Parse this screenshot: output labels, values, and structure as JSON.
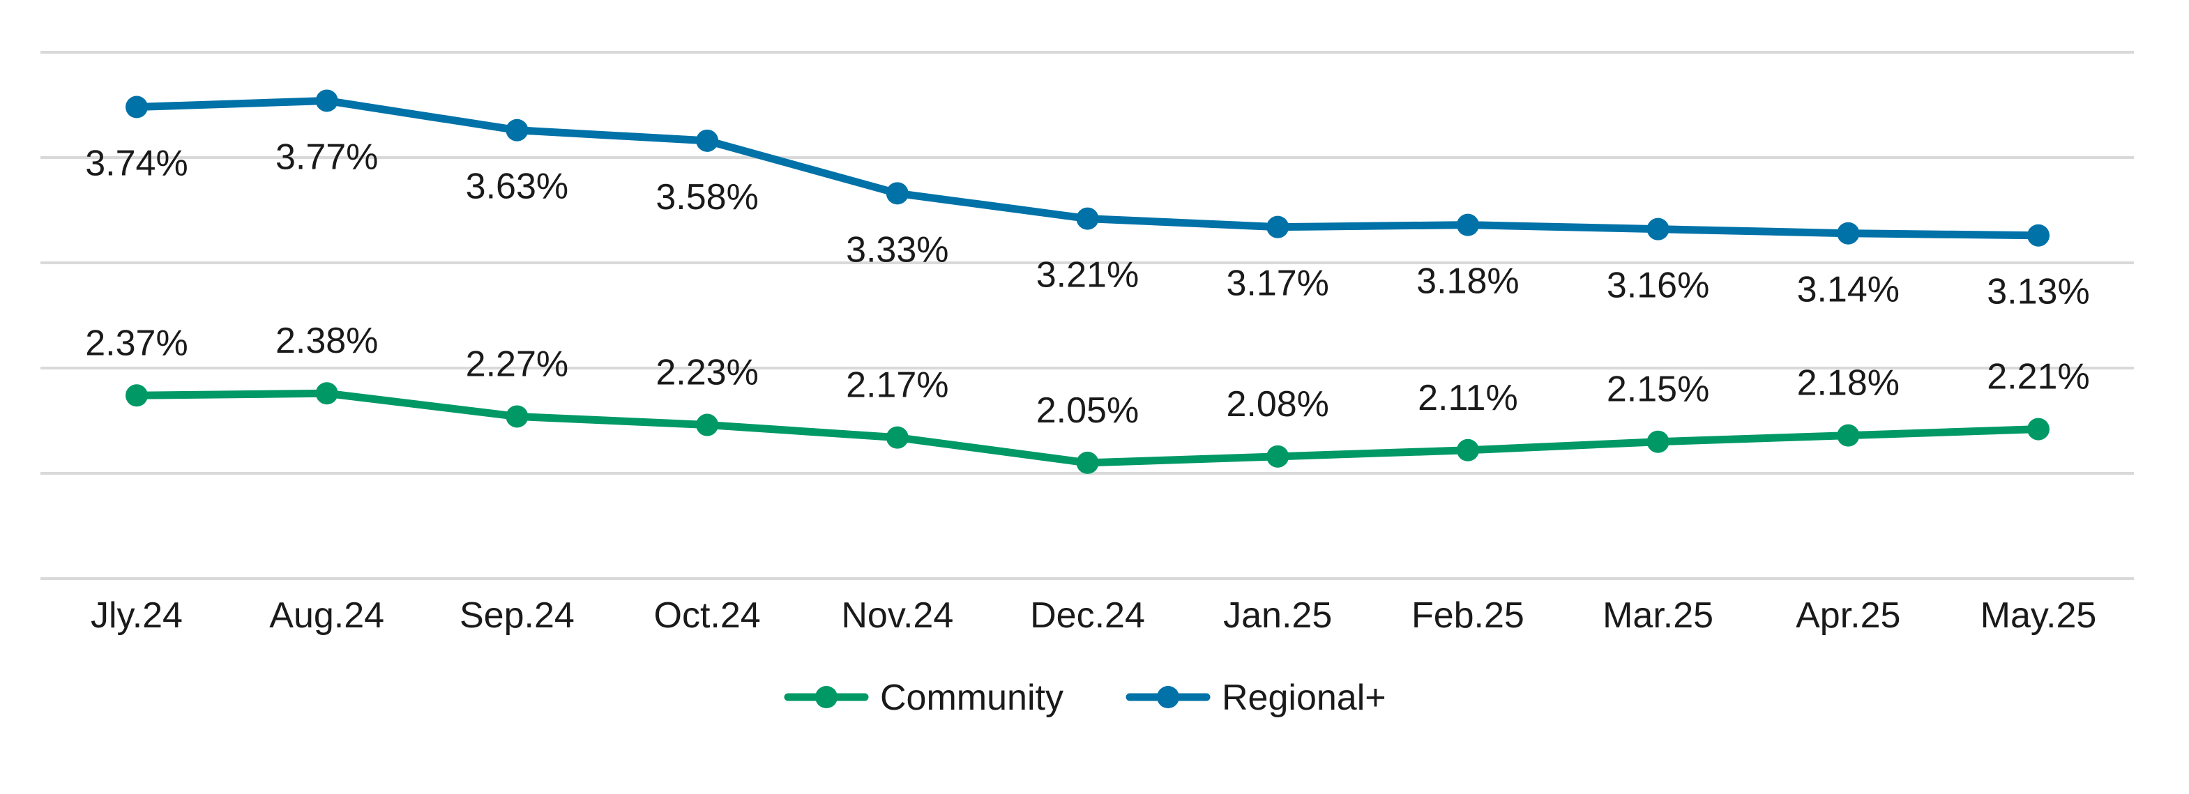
{
  "chart_data": {
    "type": "line",
    "categories": [
      "Jly.24",
      "Aug.24",
      "Sep.24",
      "Oct.24",
      "Nov.24",
      "Dec.24",
      "Jan.25",
      "Feb.25",
      "Mar.25",
      "Apr.25",
      "May.25"
    ],
    "series": [
      {
        "name": "Community",
        "color": "#009966",
        "values": [
          2.37,
          2.38,
          2.27,
          2.23,
          2.17,
          2.05,
          2.08,
          2.11,
          2.15,
          2.18,
          2.21
        ],
        "labels": [
          "2.37%",
          "2.38%",
          "2.27%",
          "2.23%",
          "2.17%",
          "2.05%",
          "2.08%",
          "2.11%",
          "2.15%",
          "2.18%",
          "2.21%"
        ]
      },
      {
        "name": "Regional+",
        "color": "#0072a8",
        "values": [
          3.74,
          3.77,
          3.63,
          3.58,
          3.33,
          3.21,
          3.17,
          3.18,
          3.16,
          3.14,
          3.13
        ],
        "labels": [
          "3.74%",
          "3.77%",
          "3.63%",
          "3.58%",
          "3.33%",
          "3.21%",
          "3.17%",
          "3.18%",
          "3.16%",
          "3.14%",
          "3.13%"
        ]
      }
    ],
    "ylim": [
      1.5,
      4.0
    ],
    "y_gridlines": [
      1.5,
      2.0,
      2.5,
      3.0,
      3.5,
      4.0
    ],
    "grid": true,
    "y_tick_labels_shown": false,
    "legend_position": "bottom"
  }
}
